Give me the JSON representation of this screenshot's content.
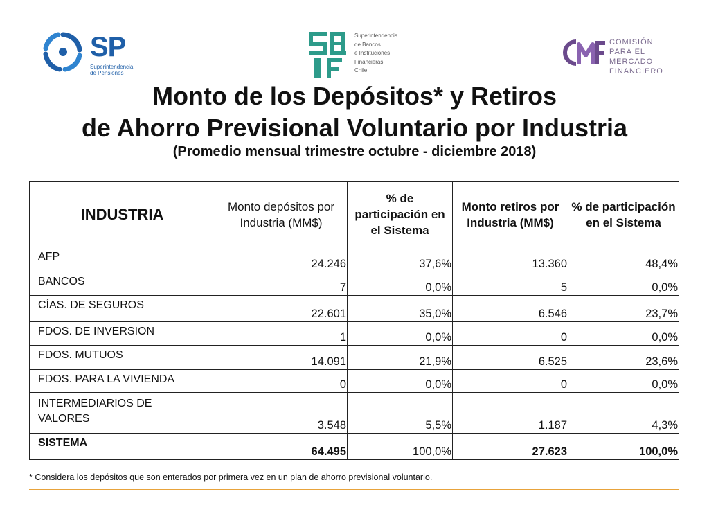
{
  "logos": {
    "sp": {
      "mark": "SP",
      "text": "Superintendencia de Pensiones",
      "color": "#1f5fa8"
    },
    "sbif": {
      "mark": "SBIF",
      "text_lines": [
        "Superintendencia",
        "de Bancos",
        "e Instituciones",
        "Financieras",
        "Chile"
      ],
      "color": "#2d9b8a"
    },
    "cmf": {
      "mark": "CMF",
      "text_lines": [
        "COMISIÓN",
        "PARA EL MERCADO",
        "FINANCIERO"
      ],
      "color": "#6b4a8c"
    }
  },
  "title": {
    "line1": "Monto de los Depósitos* y Retiros",
    "line2": "de Ahorro Previsional Voluntario por Industria",
    "subtitle": "(Promedio mensual trimestre octubre - diciembre 2018)"
  },
  "table": {
    "headers": [
      "INDUSTRIA",
      "Monto depósitos por Industria (MM$)",
      "% de participación en el Sistema",
      "Monto retiros por Industria (MM$)",
      "% de participación en el Sistema"
    ],
    "rows": [
      {
        "industria": "AFP",
        "depositos": "24.246",
        "pct_depositos": "37,6%",
        "retiros": "13.360",
        "pct_retiros": "48,4%"
      },
      {
        "industria": "BANCOS",
        "depositos": "7",
        "pct_depositos": "0,0%",
        "retiros": "5",
        "pct_retiros": "0,0%"
      },
      {
        "industria": "CÍAS. DE SEGUROS",
        "depositos": "22.601",
        "pct_depositos": "35,0%",
        "retiros": "6.546",
        "pct_retiros": "23,7%"
      },
      {
        "industria": "FDOS. DE INVERSION",
        "depositos": "1",
        "pct_depositos": "0,0%",
        "retiros": "0",
        "pct_retiros": "0,0%"
      },
      {
        "industria": "FDOS. MUTUOS",
        "depositos": "14.091",
        "pct_depositos": "21,9%",
        "retiros": "6.525",
        "pct_retiros": "23,6%"
      },
      {
        "industria": "FDOS. PARA LA VIVIENDA",
        "depositos": "0",
        "pct_depositos": "0,0%",
        "retiros": "0",
        "pct_retiros": "0,0%"
      },
      {
        "industria": "INTERMEDIARIOS DE VALORES",
        "depositos": "3.548",
        "pct_depositos": "5,5%",
        "retiros": "1.187",
        "pct_retiros": "4,3%"
      }
    ],
    "total": {
      "industria": "SISTEMA",
      "depositos": "64.495",
      "pct_depositos": "100,0%",
      "retiros": "27.623",
      "pct_retiros": "100,0%"
    }
  },
  "footnote": "* Considera los depósitos que son enterados por primera vez en un plan de ahorro previsional voluntario.",
  "colors": {
    "rule": "#e8a33b",
    "text": "#111111"
  }
}
